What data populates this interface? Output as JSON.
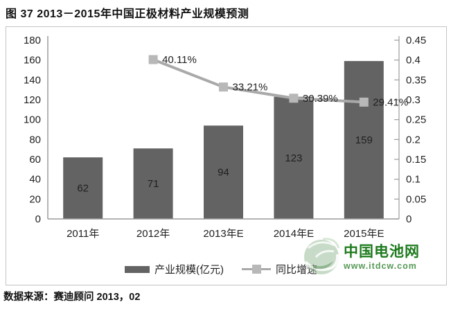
{
  "title": "图 37 2013－2015年中国正极材料产业规模预测",
  "source": "数据来源：赛迪顾问  2013，02",
  "watermark": {
    "name": "中国电池网",
    "url": "www.itdcw.com"
  },
  "chart_data": {
    "type": "bar",
    "subtype": "combo-bar-line-dual-axis",
    "categories": [
      "2011年",
      "2012年",
      "2013年E",
      "2014年E",
      "2015年E"
    ],
    "series": [
      {
        "name": "产业规模(亿元)",
        "type": "bar",
        "axis": "left",
        "values": [
          62,
          71,
          94,
          123,
          159
        ]
      },
      {
        "name": "同比增速",
        "type": "line",
        "axis": "right",
        "values": [
          null,
          0.4011,
          0.3321,
          0.3039,
          0.2941
        ],
        "point_labels": [
          "",
          "40.11%",
          "33.21%",
          "30.39%",
          "29.41%"
        ]
      }
    ],
    "left_axis": {
      "min": 0,
      "max": 180,
      "step": 20
    },
    "right_axis": {
      "min": 0,
      "max": 0.45,
      "step": 0.05
    },
    "grid": false,
    "legend_position": "bottom",
    "colors": {
      "bar": "#636363",
      "line": "#a9a9a9",
      "marker": "#b8b8b8",
      "axis": "#9b9b9b",
      "label": "#1f1f1f"
    }
  }
}
